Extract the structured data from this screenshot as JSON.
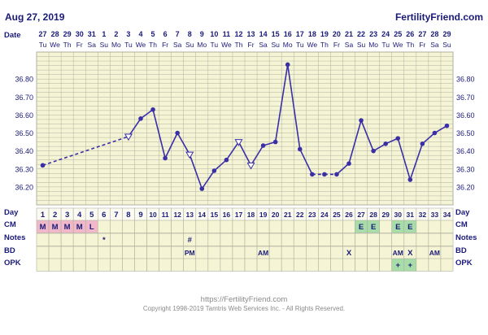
{
  "header": {
    "date": "Aug 27, 2019",
    "brand": "FertilityFriend.com"
  },
  "footer": {
    "url": "https://FertilityFriend.com",
    "copyright": "Copyright 1998-2019 Tamtris Web Services Inc. - All Rights Reserved."
  },
  "colors": {
    "grid_bg": "#f5f5d5",
    "grid_line": "#b0b0a0",
    "line": "#3b2fa8",
    "text": "#1a1a7a",
    "m_cell": "#f0b8c8",
    "e_cell": "#a8dca8",
    "row_bg": "#f5f5d5"
  },
  "row_labels": {
    "date": "Date",
    "day": "Day",
    "cm": "CM",
    "notes": "Notes",
    "bd": "BD",
    "opk": "OPK"
  },
  "dates": [
    "27",
    "28",
    "29",
    "30",
    "31",
    "1",
    "2",
    "3",
    "4",
    "5",
    "6",
    "7",
    "8",
    "9",
    "10",
    "11",
    "12",
    "13",
    "14",
    "15",
    "16",
    "17",
    "18",
    "19",
    "20",
    "21",
    "22",
    "23",
    "24",
    "25",
    "26",
    "27",
    "28",
    "29"
  ],
  "weekdays": [
    "Tu",
    "We",
    "Th",
    "Fr",
    "Sa",
    "Su",
    "Mo",
    "Tu",
    "We",
    "Th",
    "Fr",
    "Sa",
    "Su",
    "Mo",
    "Tu",
    "We",
    "Th",
    "Fr",
    "Sa",
    "Su",
    "Mo",
    "Tu",
    "We",
    "Th",
    "Fr",
    "Sa",
    "Su",
    "Mo",
    "Tu",
    "We",
    "Th",
    "Fr",
    "Sa",
    "Su"
  ],
  "cm": [
    "M",
    "M",
    "M",
    "M",
    "L",
    "",
    "",
    "",
    "",
    "",
    "",
    "",
    "",
    "",
    "",
    "",
    "",
    "",
    "",
    "",
    "",
    "",
    "",
    "",
    "",
    "",
    "E",
    "E",
    "",
    "E",
    "E",
    "",
    "",
    ""
  ],
  "cm_types": [
    "m",
    "m",
    "m",
    "m",
    "m",
    "",
    "",
    "",
    "",
    "",
    "",
    "",
    "",
    "",
    "",
    "",
    "",
    "",
    "",
    "",
    "",
    "",
    "",
    "",
    "",
    "",
    "e",
    "e",
    "",
    "e",
    "e",
    "",
    "",
    ""
  ],
  "notes": [
    "",
    "",
    "",
    "",
    "",
    "*",
    "",
    "",
    "",
    "",
    "",
    "",
    "#",
    "",
    "",
    "",
    "",
    "",
    "",
    "",
    "",
    "",
    "",
    "",
    "",
    "",
    "",
    "",
    "",
    "",
    "",
    "",
    "",
    ""
  ],
  "bd": [
    "",
    "",
    "",
    "",
    "",
    "",
    "",
    "",
    "",
    "",
    "",
    "",
    "PM",
    "",
    "",
    "",
    "",
    "",
    "AM",
    "",
    "",
    "",
    "",
    "",
    "",
    "X",
    "",
    "",
    "",
    "AM",
    "X",
    "",
    "AM",
    ""
  ],
  "opk": [
    "",
    "",
    "",
    "",
    "",
    "",
    "",
    "",
    "",
    "",
    "",
    "",
    "",
    "",
    "",
    "",
    "",
    "",
    "",
    "",
    "",
    "",
    "",
    "",
    "",
    "",
    "",
    "",
    "",
    "+",
    "+",
    "",
    "",
    ""
  ],
  "opk_types": [
    "",
    "",
    "",
    "",
    "",
    "",
    "",
    "",
    "",
    "",
    "",
    "",
    "",
    "",
    "",
    "",
    "",
    "",
    "",
    "",
    "",
    "",
    "",
    "",
    "",
    "",
    "",
    "",
    "",
    "e",
    "e",
    "",
    "",
    ""
  ],
  "chart_data": {
    "type": "line",
    "x": [
      1,
      2,
      3,
      4,
      5,
      6,
      7,
      8,
      9,
      10,
      11,
      12,
      13,
      14,
      15,
      16,
      17,
      18,
      19,
      20,
      21,
      22,
      23,
      24,
      25,
      26,
      27,
      28,
      29,
      30,
      31,
      32,
      33,
      34
    ],
    "series": [
      {
        "values": [
          36.32,
          null,
          null,
          null,
          null,
          null,
          null,
          36.48,
          36.58,
          36.63,
          36.36,
          36.5,
          36.38,
          36.19,
          36.29,
          36.35,
          36.45,
          36.32,
          36.43,
          36.45,
          36.88,
          36.41,
          36.27,
          36.27,
          36.27,
          36.33,
          36.57,
          36.4,
          36.44,
          36.47,
          36.24,
          36.44,
          36.5,
          36.54
        ]
      }
    ],
    "open_points": [
      8,
      13,
      17,
      18
    ],
    "y_ticks": [
      "36.80",
      "36.70",
      "36.60",
      "36.50",
      "36.40",
      "36.30",
      "36.20"
    ],
    "ylim": [
      36.1,
      36.95
    ],
    "grid": true
  }
}
